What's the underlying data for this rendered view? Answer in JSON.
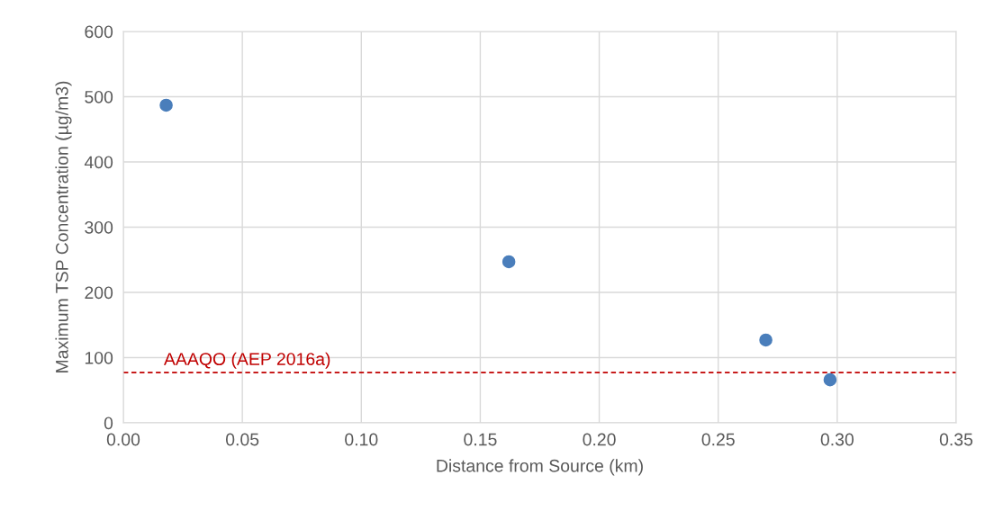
{
  "chart_data": {
    "type": "scatter",
    "xlabel": "Distance from Source (km)",
    "ylabel": "Maximum TSP Concentration (µg/m3)",
    "x": [
      0.018,
      0.162,
      0.27,
      0.297
    ],
    "values": [
      487,
      247,
      127,
      66
    ],
    "color": "#4a7ebb",
    "marker": "circle",
    "xlim": [
      0,
      0.35
    ],
    "xticks": [
      {
        "value": 0,
        "label": "0.00"
      },
      {
        "value": 0.05,
        "label": "0.05"
      },
      {
        "value": 0.1,
        "label": "0.10"
      },
      {
        "value": 0.15,
        "label": "0.15"
      },
      {
        "value": 0.2,
        "label": "0.20"
      },
      {
        "value": 0.25,
        "label": "0.25"
      },
      {
        "value": 0.3,
        "label": "0.30"
      },
      {
        "value": 0.35,
        "label": "0.35"
      }
    ],
    "ylim": [
      0,
      600
    ],
    "yticks": [
      0,
      100,
      200,
      300,
      400,
      500,
      600
    ],
    "grid": true,
    "ref_lines": [
      {
        "axis": "y",
        "value": 77,
        "label": "AAAQO (AEP 2016a)",
        "color": "#c00000",
        "line_style": "dashed"
      }
    ]
  }
}
